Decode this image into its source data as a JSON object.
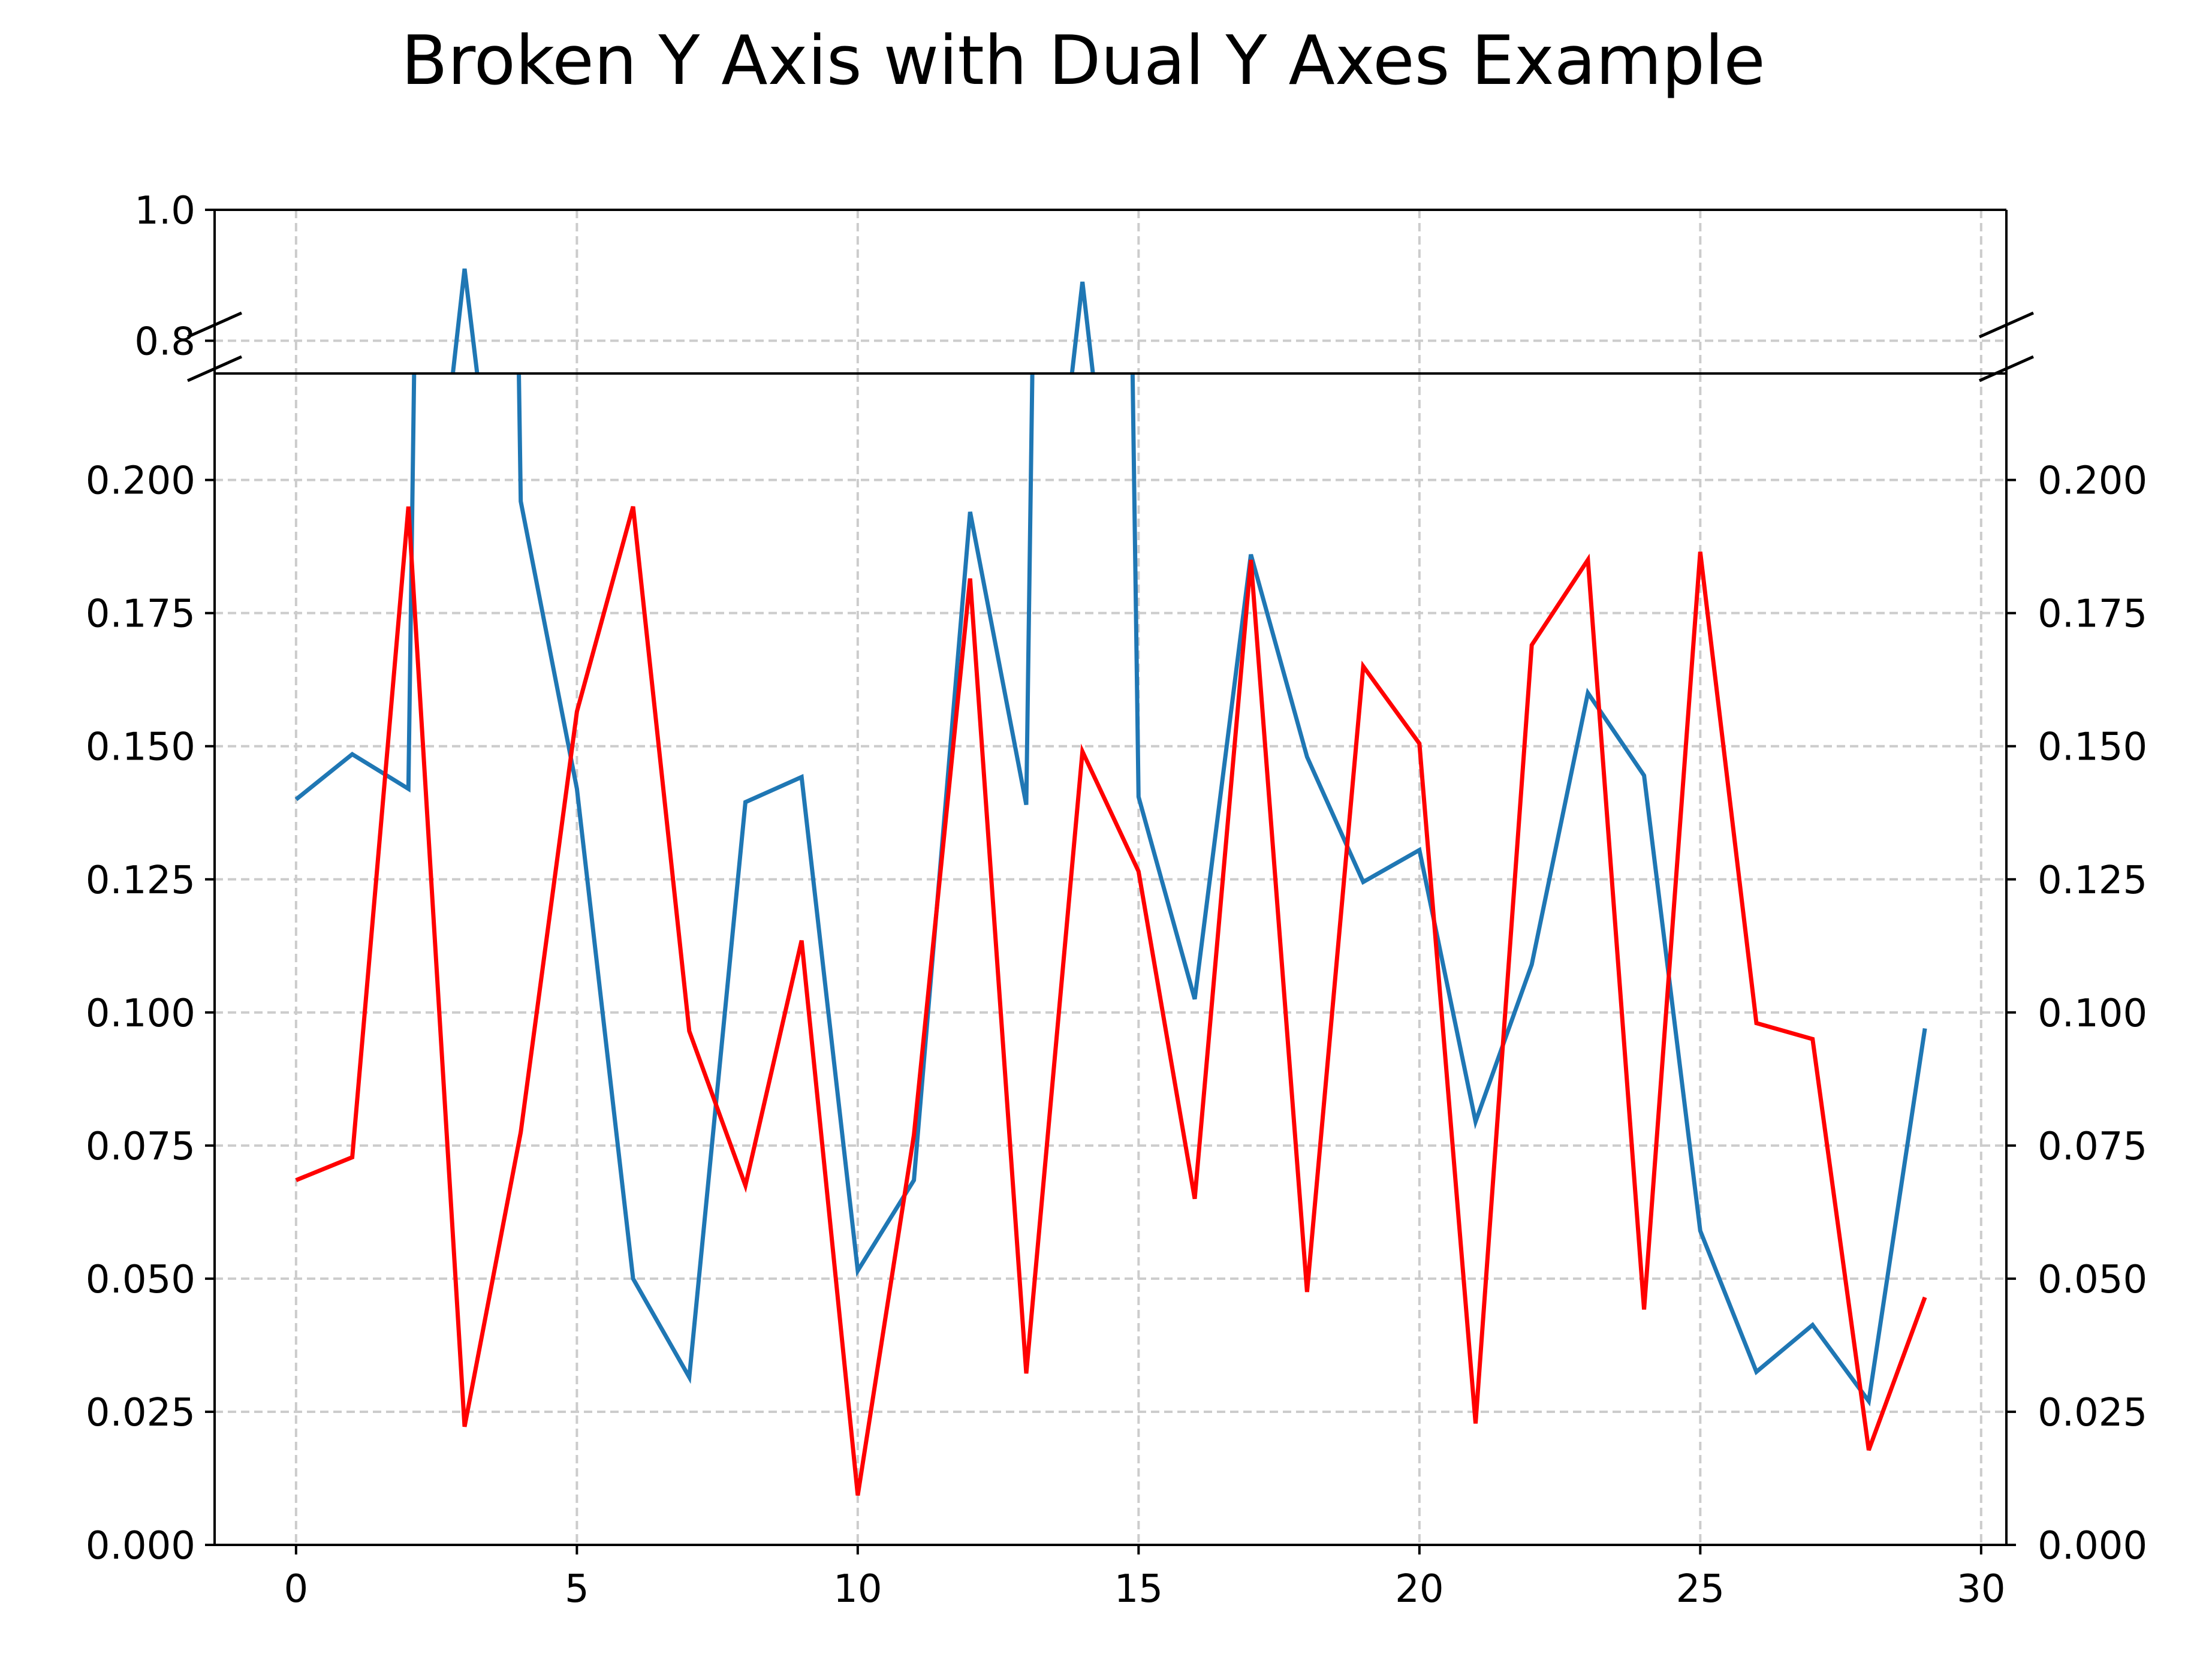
{
  "chart_data": {
    "type": "line",
    "title": "Broken Y Axis with Dual Y Axes Example",
    "xlabel": "",
    "ylabel": "",
    "xlim": [
      -1.45,
      30.45
    ],
    "x_ticks": [
      0,
      5,
      10,
      15,
      20,
      25,
      30
    ],
    "x_tick_labels": [
      "0",
      "5",
      "10",
      "15",
      "20",
      "25",
      "30"
    ],
    "grid": true,
    "legend": "none",
    "broken_y_axis": true,
    "top_panel": {
      "ylim": [
        0.75,
        1.0
      ],
      "y_ticks": [
        0.8,
        1.0
      ],
      "y_tick_labels": [
        "0.8",
        "1.0"
      ]
    },
    "bottom_panel": {
      "ylim": [
        0.0,
        0.22
      ],
      "y_ticks": [
        0.0,
        0.025,
        0.05,
        0.075,
        0.1,
        0.125,
        0.15,
        0.175,
        0.2
      ],
      "y_tick_labels": [
        "0.000",
        "0.025",
        "0.050",
        "0.075",
        "0.100",
        "0.125",
        "0.150",
        "0.175",
        "0.200"
      ],
      "y2_ticks": [
        0.0,
        0.025,
        0.05,
        0.075,
        0.1,
        0.125,
        0.15,
        0.175,
        0.2
      ],
      "y2_tick_labels": [
        "0.000",
        "0.025",
        "0.050",
        "0.075",
        "0.100",
        "0.125",
        "0.150",
        "0.175",
        "0.200"
      ]
    },
    "x": [
      0,
      1,
      2,
      3,
      4,
      5,
      6,
      7,
      8,
      9,
      10,
      11,
      12,
      13,
      14,
      15,
      16,
      17,
      18,
      19,
      20,
      21,
      22,
      23,
      24,
      25,
      26,
      27,
      28,
      29
    ],
    "series": [
      {
        "color": "#1f77b4",
        "axis": "left",
        "values": [
          0.14,
          0.1485,
          0.142,
          0.91,
          0.196,
          0.142,
          0.05,
          0.0315,
          0.1395,
          0.1442,
          0.0515,
          0.0685,
          0.194,
          0.139,
          0.89,
          0.1405,
          0.1025,
          0.186,
          0.148,
          0.1245,
          0.1305,
          0.0795,
          0.109,
          0.16,
          0.1445,
          0.059,
          0.0325,
          0.0413,
          0.027,
          0.097
        ]
      },
      {
        "color": "#ff0000",
        "axis": "right",
        "values": [
          0.0685,
          0.0728,
          0.195,
          0.0222,
          0.0775,
          0.1565,
          0.195,
          0.0965,
          0.0675,
          0.1135,
          0.0093,
          0.077,
          0.1815,
          0.0322,
          0.149,
          0.1265,
          0.065,
          0.185,
          0.0475,
          0.165,
          0.1505,
          0.0228,
          0.169,
          0.185,
          0.0442,
          0.1865,
          0.098,
          0.095,
          0.0178,
          0.0465
        ]
      }
    ]
  }
}
